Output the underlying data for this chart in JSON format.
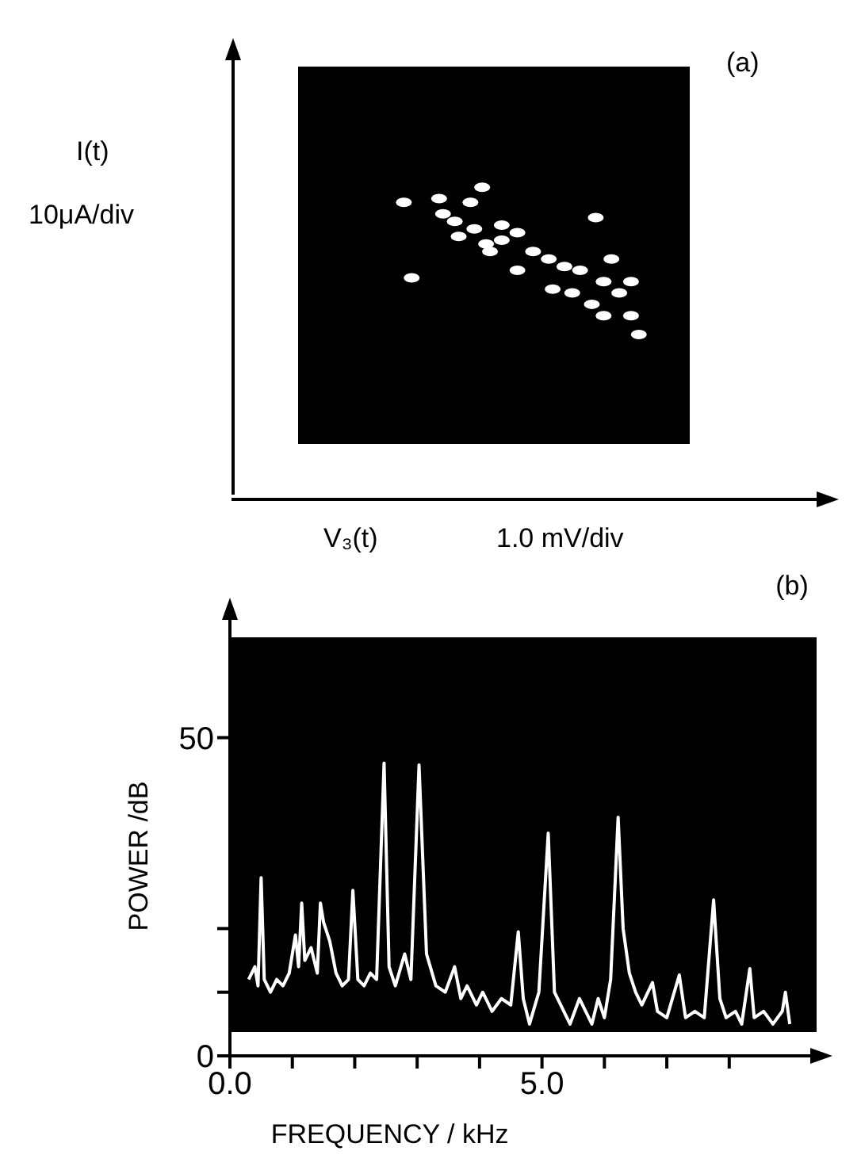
{
  "chart_data": [
    {
      "type": "other",
      "ylabel": "I(t)",
      "xlabel": "V₃(t)",
      "annotations": [
        "10μA/div",
        "1.0 mV/div",
        "(a)"
      ]
    },
    {
      "type": "line",
      "xlabel": "FREQUENCY / kHz",
      "ylabel": "POWER /dB",
      "annotations": [
        "(b)"
      ],
      "marker": "none",
      "line_style": "solid",
      "xlim": [
        0,
        9.4
      ],
      "xticks": [
        {
          "value": 0,
          "label": "0.0"
        },
        {
          "value": 1,
          "label": null
        },
        {
          "value": 2,
          "label": null
        },
        {
          "value": 3,
          "label": null
        },
        {
          "value": 4,
          "label": null
        },
        {
          "value": 5,
          "label": "5.0"
        },
        {
          "value": 6,
          "label": null
        },
        {
          "value": 7,
          "label": null
        },
        {
          "value": 8,
          "label": null
        }
      ],
      "ylim": [
        0,
        70
      ],
      "yticks": [
        0,
        {
          "value": 10,
          "label": null
        },
        {
          "value": 20,
          "label": null
        },
        50
      ],
      "bands": [
        {
          "axis": "y",
          "from": 3.75,
          "to": 65.75,
          "color": "#000000"
        }
      ],
      "series": [
        {
          "color": "#ffffff",
          "x": [
            0.3,
            0.4,
            0.45,
            0.5,
            0.55,
            0.65,
            0.75,
            0.85,
            0.95,
            1.05,
            1.1,
            1.15,
            1.2,
            1.3,
            1.4,
            1.45,
            1.5,
            1.6,
            1.7,
            1.8,
            1.9,
            1.97,
            2.05,
            2.15,
            2.25,
            2.35,
            2.47,
            2.55,
            2.65,
            2.8,
            2.9,
            3.03,
            3.15,
            3.3,
            3.45,
            3.6,
            3.7,
            3.8,
            3.95,
            4.05,
            4.2,
            4.35,
            4.5,
            4.62,
            4.7,
            4.8,
            4.95,
            5.1,
            5.2,
            5.35,
            5.45,
            5.6,
            5.7,
            5.8,
            5.9,
            6.0,
            6.1,
            6.22,
            6.3,
            6.4,
            6.5,
            6.6,
            6.77,
            6.85,
            7.0,
            7.2,
            7.3,
            7.45,
            7.6,
            7.75,
            7.85,
            7.95,
            8.1,
            8.2,
            8.33,
            8.4,
            8.55,
            8.7,
            8.85,
            8.9,
            8.97
          ],
          "values": [
            12,
            14,
            11,
            28,
            12,
            10,
            12,
            11,
            13,
            19,
            14,
            24,
            15,
            17,
            13,
            24,
            21,
            18,
            13,
            11,
            12,
            26,
            12,
            11,
            13,
            12,
            46,
            14,
            11,
            16,
            12,
            45.7,
            16,
            11,
            10,
            14,
            9,
            11,
            8,
            10,
            7,
            9,
            8,
            19.5,
            9,
            5,
            10,
            35,
            10,
            7,
            5,
            9,
            7,
            5,
            9,
            6,
            12,
            37.5,
            20,
            13,
            10,
            8,
            11.5,
            7,
            6,
            12.7,
            6,
            7,
            6,
            24.5,
            9,
            6,
            7,
            5,
            13.7,
            6,
            7,
            5,
            7,
            10,
            5
          ]
        }
      ]
    }
  ]
}
